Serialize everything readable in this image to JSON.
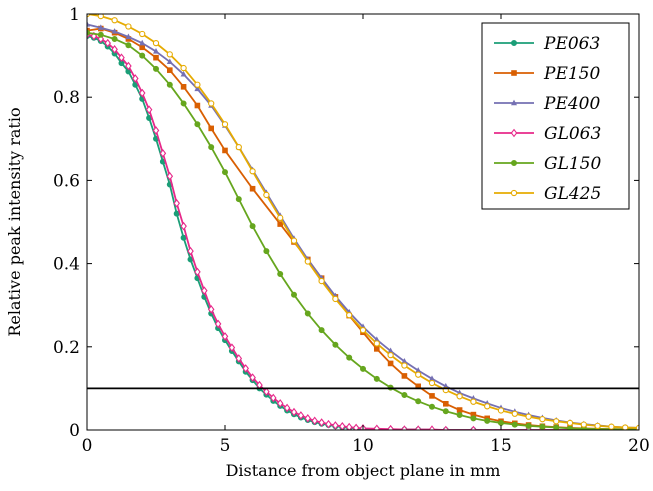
{
  "chart_data": {
    "type": "line",
    "title": "",
    "xlabel": "Distance from object plane in mm",
    "ylabel": "Relative peak intensity ratio",
    "xlim": [
      0,
      20
    ],
    "ylim": [
      0,
      1
    ],
    "xticks": [
      "0",
      "5",
      "10",
      "15",
      "20"
    ],
    "yticks": [
      "0",
      "0.2",
      "0.4",
      "0.6",
      "0.8",
      "1"
    ],
    "grid": false,
    "legend_position": "top-right",
    "threshold_line": {
      "y": 0.1,
      "color": "#000000"
    },
    "series": [
      {
        "name": "PE063",
        "color": "#1b9e77",
        "marker": "circle",
        "x": [
          0,
          0.25,
          0.5,
          0.75,
          1,
          1.25,
          1.5,
          1.75,
          2,
          2.25,
          2.5,
          2.75,
          3,
          3.25,
          3.5,
          3.75,
          4,
          4.25,
          4.5,
          4.75,
          5,
          5.25,
          5.5,
          5.75,
          6,
          6.25,
          6.5,
          6.75,
          7,
          7.25,
          7.5,
          7.75,
          8,
          8.25,
          8.5,
          8.75,
          9,
          9.25,
          9.5,
          9.75,
          10,
          10.5,
          11,
          11.5,
          12,
          13,
          14,
          16,
          18,
          20
        ],
        "y": [
          0.947,
          0.943,
          0.935,
          0.922,
          0.905,
          0.882,
          0.862,
          0.83,
          0.796,
          0.75,
          0.7,
          0.645,
          0.59,
          0.52,
          0.462,
          0.41,
          0.365,
          0.32,
          0.28,
          0.245,
          0.216,
          0.19,
          0.165,
          0.14,
          0.12,
          0.1,
          0.085,
          0.07,
          0.058,
          0.047,
          0.038,
          0.03,
          0.024,
          0.019,
          0.015,
          0.012,
          0.009,
          0.007,
          0.005,
          0.004,
          0.003,
          0.002,
          0.001,
          0.001,
          0.001,
          0,
          0,
          0,
          0,
          0
        ]
      },
      {
        "name": "PE150",
        "color": "#d95f02",
        "marker": "square",
        "x": [
          0,
          0.5,
          1,
          1.5,
          2,
          2.5,
          3,
          3.5,
          4,
          4.5,
          5,
          6,
          7,
          7.5,
          8,
          8.5,
          9,
          9.5,
          10,
          10.5,
          11,
          11.5,
          12,
          12.5,
          13,
          13.5,
          14,
          14.5,
          15,
          15.5,
          16,
          16.5,
          17,
          17.5,
          18,
          18.5,
          19,
          19.5,
          20
        ],
        "y": [
          0.96,
          0.965,
          0.955,
          0.94,
          0.92,
          0.895,
          0.865,
          0.825,
          0.78,
          0.725,
          0.672,
          0.58,
          0.495,
          0.452,
          0.41,
          0.365,
          0.32,
          0.275,
          0.235,
          0.195,
          0.16,
          0.13,
          0.105,
          0.082,
          0.063,
          0.048,
          0.037,
          0.028,
          0.021,
          0.016,
          0.012,
          0.009,
          0.007,
          0.005,
          0.004,
          0.003,
          0.002,
          0.002,
          0.001
        ]
      },
      {
        "name": "PE400",
        "color": "#7570b3",
        "marker": "triangle",
        "x": [
          0,
          0.5,
          1,
          1.5,
          2,
          2.5,
          3,
          3.5,
          4,
          4.5,
          5,
          5.5,
          6,
          6.5,
          7,
          7.5,
          8,
          8.5,
          9,
          9.5,
          10,
          10.5,
          11,
          11.5,
          12,
          12.5,
          13,
          13.5,
          14,
          14.5,
          15,
          15.5,
          16,
          16.5,
          17,
          17.5,
          18,
          18.5,
          19,
          19.5,
          20
        ],
        "y": [
          0.975,
          0.967,
          0.958,
          0.945,
          0.93,
          0.91,
          0.885,
          0.855,
          0.82,
          0.78,
          0.732,
          0.68,
          0.625,
          0.57,
          0.515,
          0.46,
          0.41,
          0.365,
          0.322,
          0.283,
          0.248,
          0.217,
          0.19,
          0.165,
          0.143,
          0.123,
          0.105,
          0.089,
          0.076,
          0.064,
          0.053,
          0.044,
          0.036,
          0.029,
          0.023,
          0.018,
          0.014,
          0.011,
          0.008,
          0.006,
          0.005
        ]
      },
      {
        "name": "GL063",
        "color": "#e7298a",
        "marker": "diamond",
        "x": [
          0,
          0.25,
          0.5,
          0.75,
          1,
          1.25,
          1.5,
          1.75,
          2,
          2.25,
          2.5,
          2.75,
          3,
          3.25,
          3.5,
          3.75,
          4,
          4.25,
          4.5,
          4.75,
          5,
          5.25,
          5.5,
          5.75,
          6,
          6.25,
          6.5,
          6.75,
          7,
          7.25,
          7.5,
          7.75,
          8,
          8.25,
          8.5,
          8.75,
          9,
          9.25,
          9.5,
          9.75,
          10,
          10.5,
          11,
          11.5,
          12,
          12.5,
          13,
          14,
          16,
          18,
          20
        ],
        "y": [
          0.95,
          0.947,
          0.94,
          0.93,
          0.915,
          0.895,
          0.875,
          0.845,
          0.81,
          0.77,
          0.72,
          0.665,
          0.61,
          0.545,
          0.49,
          0.43,
          0.38,
          0.335,
          0.29,
          0.255,
          0.225,
          0.198,
          0.172,
          0.148,
          0.126,
          0.108,
          0.092,
          0.077,
          0.064,
          0.053,
          0.043,
          0.035,
          0.028,
          0.022,
          0.018,
          0.014,
          0.011,
          0.009,
          0.007,
          0.005,
          0.004,
          0.003,
          0.002,
          0.001,
          0.001,
          0.001,
          0,
          0,
          0,
          0,
          0
        ]
      },
      {
        "name": "GL150",
        "color": "#66a61e",
        "marker": "circle",
        "x": [
          0,
          0.5,
          1,
          1.5,
          2,
          2.5,
          3,
          3.5,
          4,
          4.5,
          5,
          5.5,
          6,
          6.5,
          7,
          7.5,
          8,
          8.5,
          9,
          9.5,
          10,
          10.5,
          11,
          11.5,
          12,
          12.5,
          13,
          13.5,
          14,
          14.5,
          15,
          15.5,
          16,
          16.5,
          17,
          17.5,
          18,
          18.5,
          19,
          19.5,
          20
        ],
        "y": [
          0.955,
          0.95,
          0.94,
          0.925,
          0.9,
          0.868,
          0.83,
          0.785,
          0.735,
          0.68,
          0.62,
          0.555,
          0.49,
          0.43,
          0.375,
          0.325,
          0.28,
          0.24,
          0.205,
          0.174,
          0.147,
          0.123,
          0.102,
          0.084,
          0.069,
          0.056,
          0.045,
          0.036,
          0.028,
          0.022,
          0.017,
          0.013,
          0.01,
          0.008,
          0.006,
          0.004,
          0.003,
          0.002,
          0.002,
          0.001,
          0.001
        ]
      },
      {
        "name": "GL425",
        "color": "#e6ab02",
        "marker": "circle-open",
        "x": [
          0,
          0.5,
          1,
          1.5,
          2,
          2.5,
          3,
          3.5,
          4,
          4.5,
          5,
          5.5,
          6,
          6.5,
          7,
          7.5,
          8,
          8.5,
          9,
          9.5,
          10,
          10.5,
          11,
          11.5,
          12,
          12.5,
          13,
          13.5,
          14,
          14.5,
          15,
          15.5,
          16,
          16.5,
          17,
          17.5,
          18,
          18.5,
          19,
          19.5,
          20
        ],
        "y": [
          1.0,
          0.995,
          0.985,
          0.97,
          0.952,
          0.93,
          0.903,
          0.87,
          0.83,
          0.785,
          0.735,
          0.68,
          0.622,
          0.565,
          0.51,
          0.455,
          0.405,
          0.358,
          0.315,
          0.276,
          0.24,
          0.208,
          0.18,
          0.155,
          0.133,
          0.113,
          0.096,
          0.081,
          0.068,
          0.057,
          0.047,
          0.039,
          0.032,
          0.026,
          0.021,
          0.017,
          0.013,
          0.01,
          0.008,
          0.006,
          0.005
        ]
      }
    ]
  }
}
